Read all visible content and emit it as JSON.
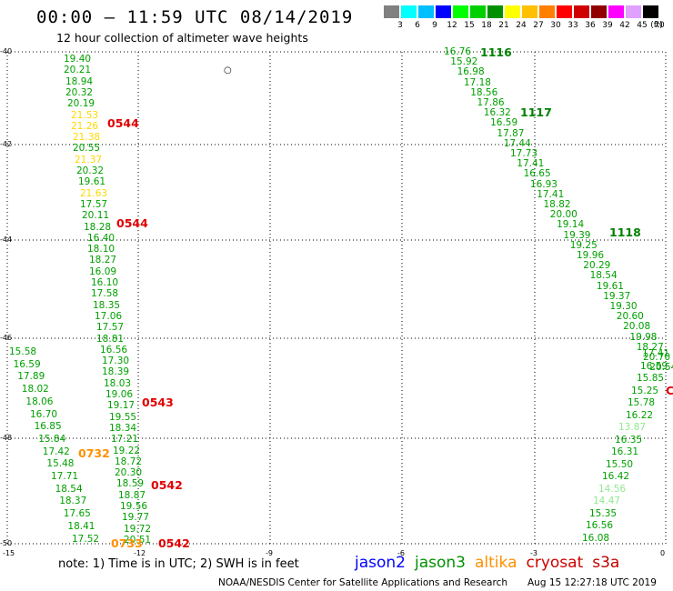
{
  "header": {
    "title": "00:00 – 11:59 UTC 08/14/2019",
    "subtitle": "12 hour collection of altimeter wave heights"
  },
  "legend": {
    "colors": [
      "#808080",
      "#00ffff",
      "#00bfff",
      "#0000ff",
      "#00ff00",
      "#00d000",
      "#009000",
      "#ffff00",
      "#ffc000",
      "#ff8000",
      "#ff0000",
      "#d00000",
      "#900000",
      "#ff00ff",
      "#e0a0ff",
      "#000000"
    ],
    "levels": [
      "3",
      "6",
      "9",
      "12",
      "15",
      "18",
      "21",
      "24",
      "27",
      "30",
      "33",
      "36",
      "39",
      "42",
      "45",
      "70"
    ],
    "unit": "(ft)"
  },
  "axes": {
    "y_ticks": [
      "-40",
      "-42",
      "-44",
      "-46",
      "-48",
      "-50"
    ],
    "x_ticks": [
      "-15",
      "-12",
      "-9",
      "-6",
      "-3",
      "0"
    ]
  },
  "footer": {
    "note": "note:  1) Time is in UTC;  2) SWH is in feet",
    "satellites": [
      {
        "name": "jason2",
        "color": "#0000ff"
      },
      {
        "name": "jason3",
        "color": "#009000"
      },
      {
        "name": "altika",
        "color": "#ff9000"
      },
      {
        "name": "cryosat",
        "color": "#d00000"
      },
      {
        "name": "s3a",
        "color": "#c00000"
      }
    ],
    "credit": "NOAA/NESDIS Center for Satellite Applications and Research",
    "timestamp": "Aug 15 12:27:18 UTC 2019"
  },
  "map_data": {
    "track_left": [
      {
        "v": "19.40",
        "c": "g"
      },
      {
        "v": "20.21",
        "c": "g"
      },
      {
        "v": "18.94",
        "c": "g"
      },
      {
        "v": "20.32",
        "c": "g"
      },
      {
        "v": "20.19",
        "c": "g"
      },
      {
        "v": "21.53",
        "c": "y"
      },
      {
        "v": "21.26",
        "c": "y"
      },
      {
        "v": "21.38",
        "c": "y"
      },
      {
        "v": "20.55",
        "c": "g"
      },
      {
        "v": "21.37",
        "c": "y"
      },
      {
        "v": "20.32",
        "c": "g"
      },
      {
        "v": "19.61",
        "c": "g"
      },
      {
        "v": "21.63",
        "c": "y"
      },
      {
        "v": "17.57",
        "c": "g"
      },
      {
        "v": "20.11",
        "c": "g"
      },
      {
        "v": "18.28",
        "c": "g"
      },
      {
        "v": "16.40",
        "c": "g"
      },
      {
        "v": "18.10",
        "c": "g"
      },
      {
        "v": "18.27",
        "c": "g"
      },
      {
        "v": "16.09",
        "c": "g"
      },
      {
        "v": "16.10",
        "c": "g"
      },
      {
        "v": "17.58",
        "c": "g"
      },
      {
        "v": "18.35",
        "c": "g"
      },
      {
        "v": "17.06",
        "c": "g"
      },
      {
        "v": "17.57",
        "c": "g"
      },
      {
        "v": "18.81",
        "c": "g"
      },
      {
        "v": "16.56",
        "c": "g"
      },
      {
        "v": "17.30",
        "c": "g"
      },
      {
        "v": "18.39",
        "c": "g"
      },
      {
        "v": "18.03",
        "c": "g"
      },
      {
        "v": "19.06",
        "c": "g"
      },
      {
        "v": "19.17",
        "c": "g"
      },
      {
        "v": "19.55",
        "c": "g"
      },
      {
        "v": "18.34",
        "c": "g"
      },
      {
        "v": "17.21",
        "c": "g"
      },
      {
        "v": "19.22",
        "c": "g"
      },
      {
        "v": "18.72",
        "c": "g"
      },
      {
        "v": "20.30",
        "c": "g"
      },
      {
        "v": "18.59",
        "c": "g"
      },
      {
        "v": "18.87",
        "c": "g"
      },
      {
        "v": "19.56",
        "c": "g"
      },
      {
        "v": "19.77",
        "c": "g"
      },
      {
        "v": "19.72",
        "c": "g"
      },
      {
        "v": "20.51",
        "c": "g"
      }
    ],
    "track_diag_left": [
      {
        "v": "15.58",
        "c": "g"
      },
      {
        "v": "16.59",
        "c": "g"
      },
      {
        "v": "17.89",
        "c": "g"
      },
      {
        "v": "18.02",
        "c": "g"
      },
      {
        "v": "18.06",
        "c": "g"
      },
      {
        "v": "16.70",
        "c": "g"
      },
      {
        "v": "16.85",
        "c": "g"
      },
      {
        "v": "15.84",
        "c": "g"
      },
      {
        "v": "17.42",
        "c": "g"
      },
      {
        "v": "15.48",
        "c": "g"
      },
      {
        "v": "17.71",
        "c": "g"
      },
      {
        "v": "18.54",
        "c": "g"
      },
      {
        "v": "18.37",
        "c": "g"
      },
      {
        "v": "17.65",
        "c": "g"
      },
      {
        "v": "18.41",
        "c": "g"
      },
      {
        "v": "17.52",
        "c": "g"
      }
    ],
    "track_right": [
      {
        "v": "16.76",
        "c": "g"
      },
      {
        "v": "15.92",
        "c": "g"
      },
      {
        "v": "16.98",
        "c": "g"
      },
      {
        "v": "17.18",
        "c": "g"
      },
      {
        "v": "18.56",
        "c": "g"
      },
      {
        "v": "17.86",
        "c": "g"
      },
      {
        "v": "16.32",
        "c": "g"
      },
      {
        "v": "16.59",
        "c": "g"
      },
      {
        "v": "17.87",
        "c": "g"
      },
      {
        "v": "17.44",
        "c": "g"
      },
      {
        "v": "17.73",
        "c": "g"
      },
      {
        "v": "17.41",
        "c": "g"
      },
      {
        "v": "16.65",
        "c": "g"
      },
      {
        "v": "16.93",
        "c": "g"
      },
      {
        "v": "17.41",
        "c": "g"
      },
      {
        "v": "18.82",
        "c": "g"
      },
      {
        "v": "20.00",
        "c": "g"
      },
      {
        "v": "19.14",
        "c": "g"
      },
      {
        "v": "19.39",
        "c": "g"
      },
      {
        "v": "19.25",
        "c": "g"
      },
      {
        "v": "19.96",
        "c": "g"
      },
      {
        "v": "20.29",
        "c": "g"
      },
      {
        "v": "18.54",
        "c": "g"
      },
      {
        "v": "19.61",
        "c": "g"
      },
      {
        "v": "19.37",
        "c": "g"
      },
      {
        "v": "19.30",
        "c": "g"
      },
      {
        "v": "20.60",
        "c": "g"
      },
      {
        "v": "20.08",
        "c": "g"
      },
      {
        "v": "19.98",
        "c": "g"
      },
      {
        "v": "18.27",
        "c": "g"
      },
      {
        "v": "20.70",
        "c": "g"
      },
      {
        "v": "20.54",
        "c": "g"
      }
    ],
    "track_right_lower": [
      {
        "v": "17.41",
        "c": "g"
      },
      {
        "v": "16.59",
        "c": "g"
      },
      {
        "v": "15.85",
        "c": "g"
      },
      {
        "v": "15.25",
        "c": "g"
      },
      {
        "v": "15.78",
        "c": "g"
      },
      {
        "v": "16.22",
        "c": "g"
      },
      {
        "v": "13.87",
        "c": "lg"
      },
      {
        "v": "16.35",
        "c": "g"
      },
      {
        "v": "16.31",
        "c": "g"
      },
      {
        "v": "15.50",
        "c": "g"
      },
      {
        "v": "16.42",
        "c": "g"
      },
      {
        "v": "14.56",
        "c": "lg"
      },
      {
        "v": "14.47",
        "c": "lg"
      },
      {
        "v": "15.35",
        "c": "g"
      },
      {
        "v": "16.56",
        "c": "g"
      },
      {
        "v": "16.08",
        "c": "g"
      }
    ],
    "time_labels": [
      {
        "t": "0544",
        "c": "red"
      },
      {
        "t": "0544",
        "c": "red"
      },
      {
        "t": "0543",
        "c": "red"
      },
      {
        "t": "0542",
        "c": "red"
      },
      {
        "t": "0542",
        "c": "red"
      },
      {
        "t": "0732",
        "c": "orange"
      },
      {
        "t": "0733",
        "c": "orange"
      },
      {
        "t": "1116",
        "c": "green"
      },
      {
        "t": "1117",
        "c": "green"
      },
      {
        "t": "1118",
        "c": "green"
      },
      {
        "t": "C",
        "c": "red"
      }
    ]
  }
}
